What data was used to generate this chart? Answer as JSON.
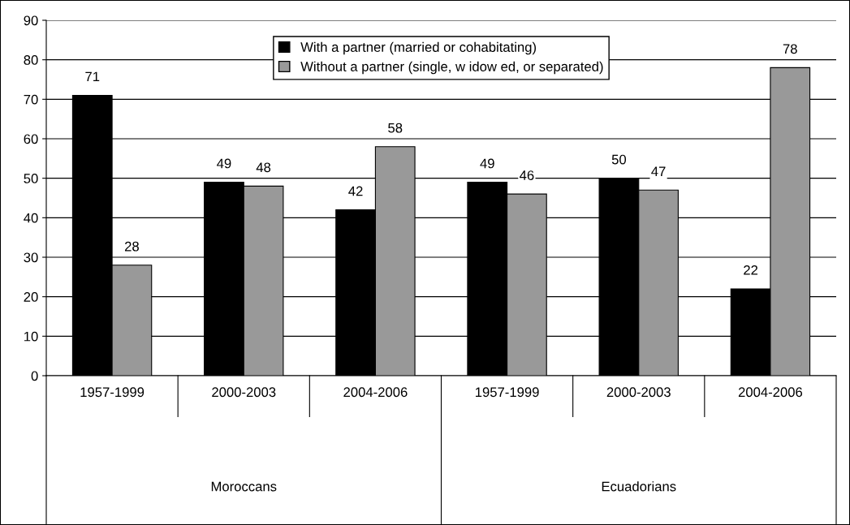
{
  "chart_data": {
    "type": "bar",
    "categories": [
      "1957-1999",
      "2000-2003",
      "2004-2006",
      "1957-1999",
      "2000-2003",
      "2004-2006"
    ],
    "series": [
      {
        "name": "With a partner (married or cohabitating)",
        "color": "#000000",
        "values": [
          71,
          49,
          42,
          49,
          50,
          22
        ]
      },
      {
        "name": "Without a partner (single, w idow ed, or separated)",
        "color": "#999999",
        "values": [
          28,
          48,
          58,
          46,
          47,
          78
        ]
      }
    ],
    "annotations": [
      "Moroccans",
      "Ecuadorians"
    ],
    "ylim": [
      0,
      90
    ],
    "yticks": [
      0,
      10,
      20,
      30,
      40,
      50,
      60,
      70,
      80,
      90
    ],
    "grid": "y",
    "legend": "top",
    "data_labels": true
  }
}
